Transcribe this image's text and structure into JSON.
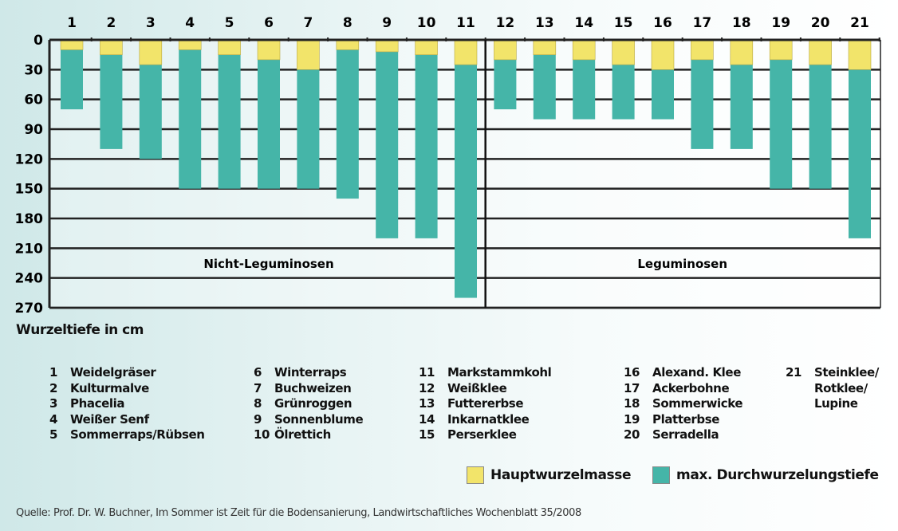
{
  "chart_data": {
    "type": "bar",
    "stacked": true,
    "orientation": "downward",
    "categories": [
      "1",
      "2",
      "3",
      "4",
      "5",
      "6",
      "7",
      "8",
      "9",
      "10",
      "11",
      "12",
      "13",
      "14",
      "15",
      "16",
      "17",
      "18",
      "19",
      "20",
      "21"
    ],
    "series": [
      {
        "name": "Hauptwurzelmasse",
        "color": "#f2e46a",
        "values": [
          10,
          15,
          25,
          10,
          15,
          20,
          30,
          10,
          12,
          15,
          25,
          20,
          15,
          20,
          25,
          30,
          20,
          25,
          20,
          25,
          30
        ]
      },
      {
        "name": "max. Durchwurzelungstiefe",
        "color": "#45b5a8",
        "values": [
          70,
          110,
          120,
          150,
          150,
          150,
          150,
          160,
          200,
          200,
          260,
          70,
          80,
          80,
          80,
          80,
          110,
          110,
          150,
          150,
          200
        ]
      }
    ],
    "ylabel": "Wurzeltiefe in cm",
    "yticks": [
      "0",
      "30",
      "60",
      "90",
      "120",
      "150",
      "180",
      "210",
      "240",
      "270"
    ],
    "ylim": [
      0,
      270
    ],
    "groups": [
      {
        "label": "Nicht-Leguminosen",
        "from": 1,
        "to": 11
      },
      {
        "label": "Leguminosen",
        "from": 12,
        "to": 21
      }
    ],
    "legend_position": "bottom-right"
  },
  "plant_list": [
    [
      {
        "n": "1",
        "name": "Weidelgräser"
      },
      {
        "n": "2",
        "name": "Kulturmalve"
      },
      {
        "n": "3",
        "name": "Phacelia"
      },
      {
        "n": "4",
        "name": "Weißer Senf"
      },
      {
        "n": "5",
        "name": "Sommerraps/Rübsen"
      }
    ],
    [
      {
        "n": "6",
        "name": "Winterraps"
      },
      {
        "n": "7",
        "name": "Buchweizen"
      },
      {
        "n": "8",
        "name": "Grünroggen"
      },
      {
        "n": "9",
        "name": "Sonnenblume"
      },
      {
        "n": "10",
        "name": "Ölrettich"
      }
    ],
    [
      {
        "n": "11",
        "name": "Markstammkohl"
      },
      {
        "n": "12",
        "name": "Weißklee"
      },
      {
        "n": "13",
        "name": "Futtererbse"
      },
      {
        "n": "14",
        "name": "Inkarnatklee"
      },
      {
        "n": "15",
        "name": "Perserklee"
      }
    ],
    [
      {
        "n": "16",
        "name": "Alexand. Klee"
      },
      {
        "n": "17",
        "name": "Ackerbohne"
      },
      {
        "n": "18",
        "name": "Sommerwicke"
      },
      {
        "n": "19",
        "name": "Platterbse"
      },
      {
        "n": "20",
        "name": "Serradella"
      }
    ],
    [
      {
        "n": "21",
        "name": "Steinklee/"
      },
      {
        "n": "",
        "name": "Rotklee/"
      },
      {
        "n": "",
        "name": "Lupine"
      }
    ]
  ],
  "source": "Quelle: Prof. Dr. W. Buchner, Im Sommer ist Zeit für die Bodensanierung, Landwirtschaftliches Wochenblatt 35/2008"
}
